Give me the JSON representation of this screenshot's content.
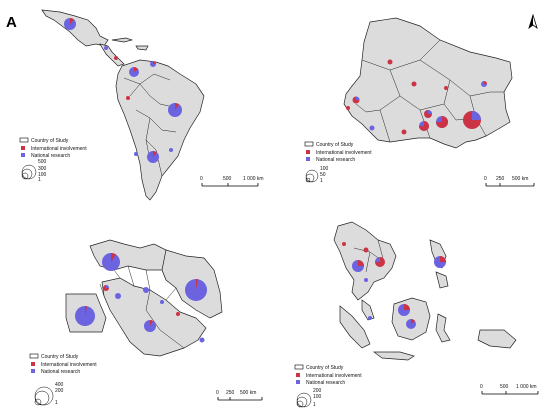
{
  "panel_letter": "A",
  "colors": {
    "international": "#cc3344",
    "national": "#6b63e0",
    "land": "#dcdcdc",
    "border": "#222222"
  },
  "legend": {
    "country": "Country of Study",
    "international": "International involvement",
    "national": "National research"
  },
  "panels": {
    "latin_america": {
      "sizes": [
        "500",
        "300",
        "100",
        "1"
      ],
      "scale": [
        "0",
        "500",
        "1 000 km"
      ]
    },
    "west_africa": {
      "sizes": [
        "100",
        "50",
        "1"
      ],
      "scale": [
        "0",
        "250",
        "500 km"
      ]
    },
    "middle_east": {
      "sizes": [
        "400",
        "200",
        "1"
      ],
      "scale": [
        "0",
        "250",
        "500 km"
      ]
    },
    "southeast_asia": {
      "sizes": [
        "200",
        "100",
        "1"
      ],
      "scale": [
        "0",
        "500",
        "1 000 km"
      ]
    }
  },
  "north_arrow": "north-arrow-icon"
}
